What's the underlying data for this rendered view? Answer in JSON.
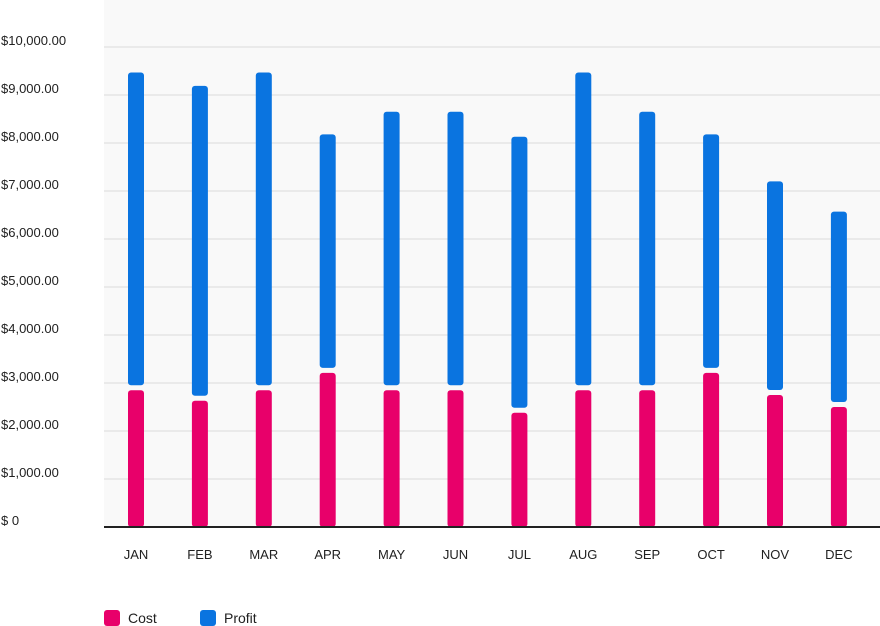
{
  "chart_data": {
    "type": "bar",
    "stacked": true,
    "categories": [
      "JAN",
      "FEB",
      "MAR",
      "APR",
      "MAY",
      "JUN",
      "JUL",
      "AUG",
      "SEP",
      "OCT",
      "NOV",
      "DEC"
    ],
    "series": [
      {
        "name": "Cost",
        "color": "#e8006a",
        "values": [
          2850,
          2630,
          2850,
          3210,
          2850,
          2850,
          2380,
          2850,
          2850,
          3210,
          2750,
          2500
        ]
      },
      {
        "name": "Profit",
        "color": "#0a74e0",
        "values": [
          6620,
          6560,
          6620,
          4970,
          5800,
          5800,
          5750,
          6620,
          5800,
          4970,
          4450,
          4070
        ]
      }
    ],
    "ylim": [
      0,
      10000
    ],
    "yticks": [
      0,
      1000,
      2000,
      3000,
      4000,
      5000,
      6000,
      7000,
      8000,
      9000,
      10000
    ],
    "ytick_labels": [
      "$ 0",
      "$1,000.00",
      "$2,000.00",
      "$3,000.00",
      "$4,000.00",
      "$5,000.00",
      "$6,000.00",
      "$7,000.00",
      "$8,000.00",
      "$9,000.00",
      "$10,000.00"
    ],
    "grid": true,
    "legend": "bottom-left",
    "title": "",
    "xlabel": "",
    "ylabel": ""
  }
}
